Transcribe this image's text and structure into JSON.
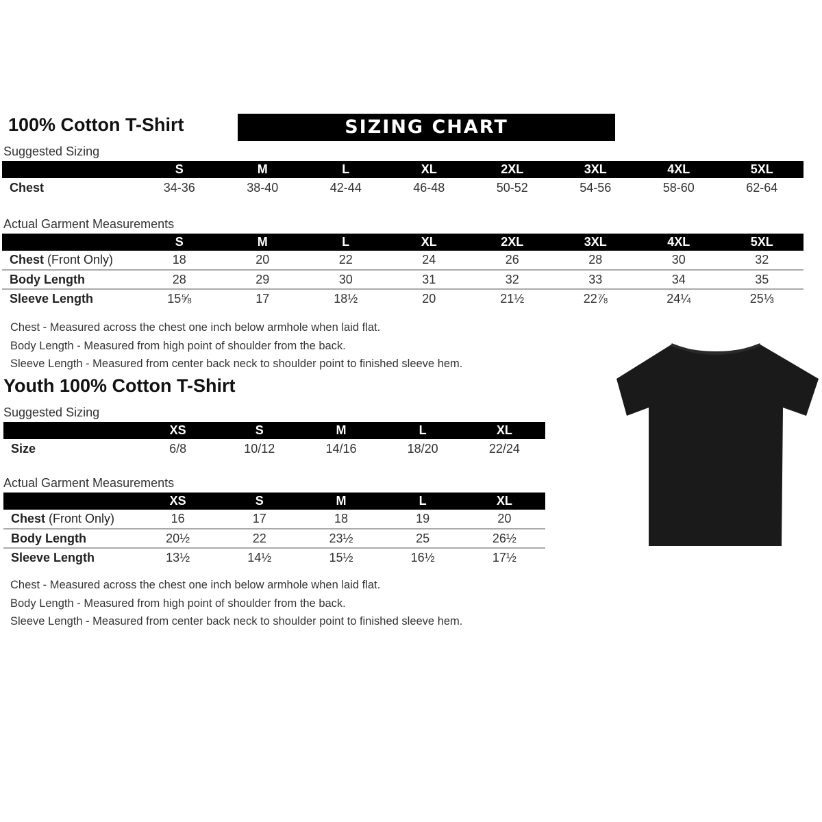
{
  "adult": {
    "title": "100% Cotton T-Shirt",
    "banner": "SIZING CHART",
    "suggested_label": "Suggested Sizing",
    "sizes": [
      "S",
      "M",
      "L",
      "XL",
      "2XL",
      "3XL",
      "4XL",
      "5XL"
    ],
    "suggested_rows": [
      {
        "label": "Chest",
        "values": [
          "34-36",
          "38-40",
          "42-44",
          "46-48",
          "50-52",
          "54-56",
          "58-60",
          "62-64"
        ]
      }
    ],
    "actual_label": "Actual Garment Measurements",
    "actual_rows": [
      {
        "label": "Chest",
        "suffix": " (Front Only)",
        "values": [
          "18",
          "20",
          "22",
          "24",
          "26",
          "28",
          "30",
          "32"
        ]
      },
      {
        "label": "Body Length",
        "suffix": "",
        "values": [
          "28",
          "29",
          "30",
          "31",
          "32",
          "33",
          "34",
          "35"
        ]
      },
      {
        "label": "Sleeve Length",
        "suffix": "",
        "values": [
          "15⅝",
          "17",
          "18½",
          "20",
          "21½",
          "22⅞",
          "24¼",
          "25⅓"
        ]
      }
    ],
    "notes": [
      "Chest - Measured across the chest one inch below armhole when laid flat.",
      "Body Length - Measured from high point of shoulder from the back.",
      "Sleeve Length - Measured from center back neck to shoulder point to finished sleeve hem."
    ]
  },
  "youth": {
    "title": "Youth 100% Cotton T-Shirt",
    "suggested_label": "Suggested Sizing",
    "sizes": [
      "XS",
      "S",
      "M",
      "L",
      "XL"
    ],
    "suggested_rows": [
      {
        "label": "Size",
        "values": [
          "6/8",
          "10/12",
          "14/16",
          "18/20",
          "22/24"
        ]
      }
    ],
    "actual_label": "Actual Garment Measurements",
    "actual_rows": [
      {
        "label": "Chest",
        "suffix": " (Front Only)",
        "values": [
          "16",
          "17",
          "18",
          "19",
          "20"
        ]
      },
      {
        "label": "Body Length",
        "suffix": "",
        "values": [
          "20½",
          "22",
          "23½",
          "25",
          "26½"
        ]
      },
      {
        "label": "Sleeve Length",
        "suffix": "",
        "values": [
          "13½",
          "14½",
          "15½",
          "16½",
          "17½"
        ]
      }
    ],
    "notes": [
      "Chest - Measured across the chest one inch below armhole when laid flat.",
      "Body Length - Measured from high point of shoulder from the back.",
      "Sleeve Length - Measured from center back neck to shoulder point to finished sleeve hem."
    ]
  },
  "colors": {
    "header_bar": "#000000",
    "shirt": "#1a1a1a"
  },
  "icons": {
    "shirt": "black-tshirt-image"
  }
}
